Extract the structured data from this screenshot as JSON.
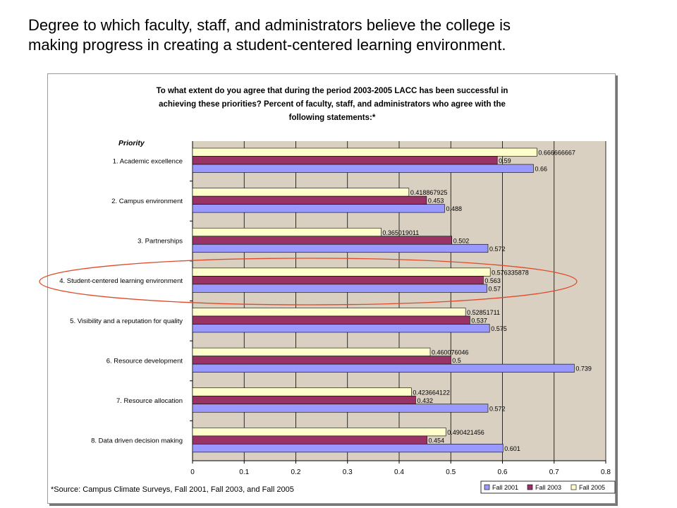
{
  "slide": {
    "title_line1": "Degree to which faculty, staff, and administrators believe the college is",
    "title_line2": "making progress in creating a student-centered learning environment."
  },
  "chart_data": {
    "type": "bar",
    "orientation": "horizontal",
    "title_lines": [
      "To what extent do you agree that during the period 2003-2005 LACC has been successful in",
      "achieving these priorities?  Percent of faculty, staff, and administrators who agree with the",
      "following statements:*"
    ],
    "ylabel": "Priority",
    "xlabel": "",
    "xlim": [
      0,
      0.8
    ],
    "xticks": [
      "0",
      "0.1",
      "0.2",
      "0.3",
      "0.4",
      "0.5",
      "0.6",
      "0.7",
      "0.8"
    ],
    "grid": true,
    "legend_position": "bottom-right",
    "highlighted_category": "4.  Student-centered learning environment",
    "source_note": "*Source:  Campus Climate Surveys, Fall 2001, Fall 2003, and Fall 2005",
    "categories": [
      "1.  Academic excellence",
      "2.  Campus environment",
      "3.  Partnerships",
      "4.  Student-centered learning environment",
      "5.  Visibility and a reputation for quality",
      "6.  Resource development",
      "7.  Resource allocation",
      "8.  Data driven decision making"
    ],
    "series": [
      {
        "name": "Fall 2005",
        "color": "#ffffcc",
        "values": [
          0.666666667,
          0.418867925,
          0.365019011,
          0.576335878,
          0.52851711,
          0.460076046,
          0.423664122,
          0.490421456
        ],
        "labels": [
          "0.666666667",
          "0.418867925",
          "0.365019011",
          "0.576335878",
          "0.52851711",
          "0.460076046",
          "0.423664122",
          "0.490421456"
        ]
      },
      {
        "name": "Fall 2003",
        "color": "#993366",
        "values": [
          0.59,
          0.453,
          0.502,
          0.563,
          0.537,
          0.5,
          0.432,
          0.454
        ],
        "labels": [
          "0.59",
          "0.453",
          "0.502",
          "0.563",
          "0.537",
          "0.5",
          "0.432",
          "0.454"
        ]
      },
      {
        "name": "Fall 2001",
        "color": "#9999ff",
        "values": [
          0.66,
          0.488,
          0.572,
          0.57,
          0.575,
          0.739,
          0.572,
          0.601
        ],
        "labels": [
          "0.66",
          "0.488",
          "0.572",
          "0.57",
          "0.575",
          "0.739",
          "0.572",
          "0.601"
        ]
      }
    ],
    "legend_order": [
      "Fall 2001",
      "Fall 2003",
      "Fall 2005"
    ]
  }
}
